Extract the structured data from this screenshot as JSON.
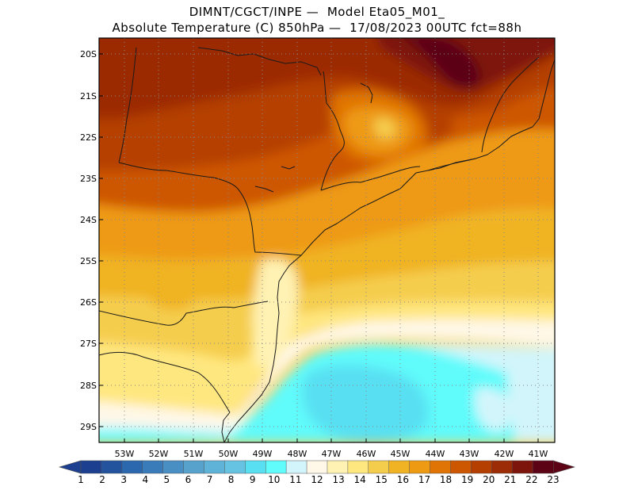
{
  "header": {
    "line1": "DIMNT/CGCT/INPE —  Model Eta05_M01_",
    "line2": "Absolute Temperature (C) 850hPa —  17/08/2023 00UTC fct=88h"
  },
  "map": {
    "lat_labels": [
      "20S",
      "21S",
      "22S",
      "23S",
      "24S",
      "25S",
      "26S",
      "27S",
      "28S",
      "29S"
    ],
    "lon_labels": [
      "53W",
      "52W",
      "51W",
      "50W",
      "49W",
      "48W",
      "47W",
      "46W",
      "45W",
      "44W",
      "43W",
      "42W",
      "41W"
    ]
  },
  "colorbar": {
    "labels": [
      "1",
      "2",
      "3",
      "4",
      "5",
      "6",
      "7",
      "8",
      "9",
      "10",
      "11",
      "12",
      "13",
      "14",
      "15",
      "16",
      "17",
      "18",
      "19",
      "20",
      "21",
      "22",
      "23"
    ],
    "colors": [
      "#1d3f8f",
      "#24539e",
      "#2c68ad",
      "#3a7cb9",
      "#4a8fc4",
      "#56a2cd",
      "#5fb3d8",
      "#66c4e2",
      "#58e0f2",
      "#60fbfb",
      "#d2f5fb",
      "#fff8e8",
      "#fff2b3",
      "#ffe780",
      "#f5cd4d",
      "#f0b323",
      "#ee9a12",
      "#e07405",
      "#cd5600",
      "#b53f00",
      "#9c2c06",
      "#7e150d",
      "#5c0416"
    ]
  }
}
